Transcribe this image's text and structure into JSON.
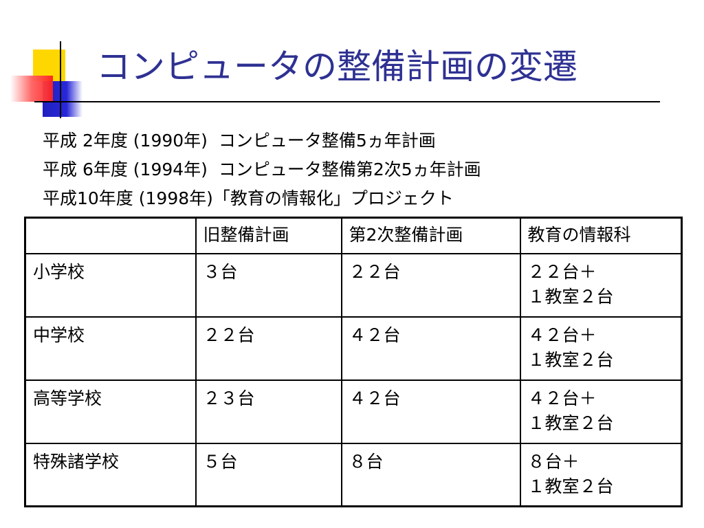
{
  "title": "コンピュータの整備計画の変遷",
  "lines": [
    "平成 2年度 (1990年)  コンピュータ整備5ヵ年計画",
    "平成 6年度 (1994年)  コンピュータ整備第2次5ヵ年計画",
    "平成10年度 (1998年)「教育の情報化」プロジェクト"
  ],
  "table": {
    "header": [
      "旧整備計画",
      "第2次整備計画",
      "教育の情報科"
    ],
    "rows": [
      {
        "label": "小学校",
        "cells": [
          [
            "３台"
          ],
          [
            "２２台"
          ],
          [
            "２２台＋",
            "１教室２台"
          ]
        ]
      },
      {
        "label": "中学校",
        "cells": [
          [
            "２２台"
          ],
          [
            "４２台"
          ],
          [
            "４２台＋",
            "１教室２台"
          ]
        ]
      },
      {
        "label": "高等学校",
        "cells": [
          [
            "２３台"
          ],
          [
            "４２台"
          ],
          [
            "４２台＋",
            "１教室２台"
          ]
        ]
      },
      {
        "label": "特殊諸学校",
        "cells": [
          [
            "５台"
          ],
          [
            "８台"
          ],
          [
            "８台＋",
            "１教室２台"
          ]
        ]
      }
    ]
  }
}
